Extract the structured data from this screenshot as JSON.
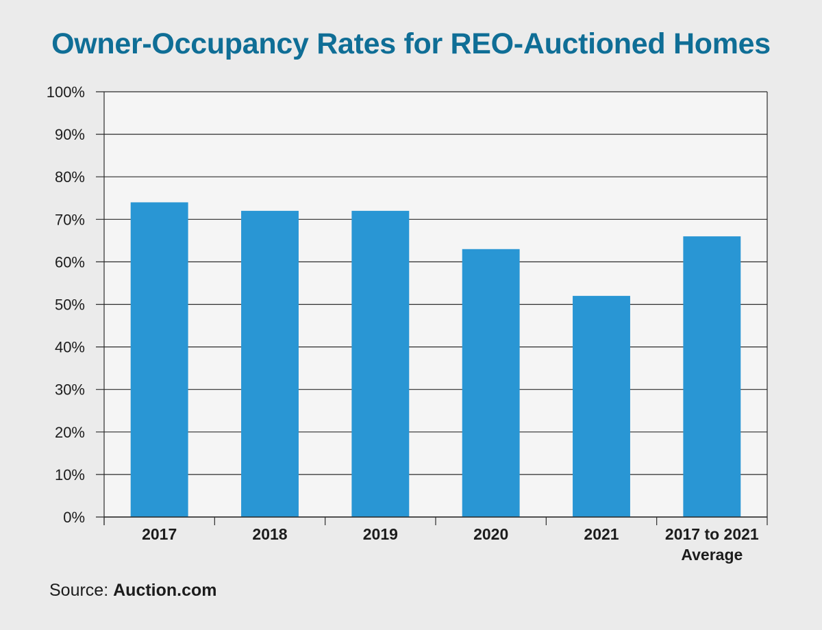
{
  "colors": {
    "background": "#ebebeb",
    "plot_background": "#f5f5f5",
    "bar": "#2996d4",
    "title": "#0f6e96",
    "grid": "#2b2b2b",
    "text": "#1c1c1c"
  },
  "source": {
    "label": "Source:",
    "value": "Auction.com"
  },
  "chart_data": {
    "type": "bar",
    "title": "Owner-Occupancy Rates for REO-Auctioned Homes",
    "xlabel": "",
    "ylabel": "",
    "categories": [
      [
        "2017"
      ],
      [
        "2018"
      ],
      [
        "2019"
      ],
      [
        "2020"
      ],
      [
        "2021"
      ],
      [
        "2017 to 2021",
        "Average"
      ]
    ],
    "values": [
      74,
      72,
      72,
      63,
      52,
      66
    ],
    "ylim": [
      0,
      100
    ],
    "yticks": [
      0,
      10,
      20,
      30,
      40,
      50,
      60,
      70,
      80,
      90,
      100
    ],
    "ytick_format": "{v}%",
    "grid": true,
    "legend": "none"
  }
}
